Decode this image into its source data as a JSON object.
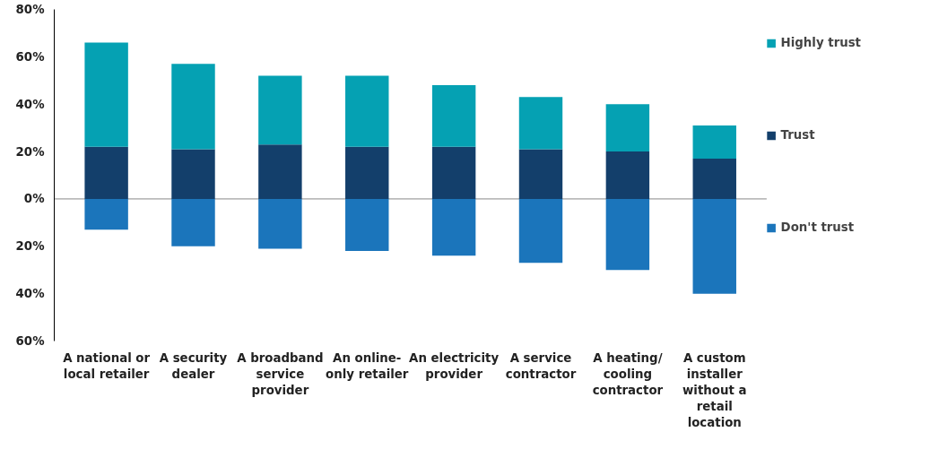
{
  "chart_data": {
    "type": "bar",
    "stacked": true,
    "categories": [
      "A national or local retailer",
      "A security dealer",
      "A broadband service provider",
      "An online-only retailer",
      "An electricity provider",
      "A service contractor",
      "A heating/ cooling contractor",
      "A custom installer without a retail location"
    ],
    "series": [
      {
        "name": "Trust",
        "color": "#133f6b",
        "values": [
          22,
          21,
          23,
          22,
          22,
          21,
          20,
          17
        ]
      },
      {
        "name": "Highly trust",
        "color": "#05a1b3",
        "values": [
          44,
          36,
          29,
          30,
          26,
          22,
          20,
          14
        ]
      },
      {
        "name": "Don't trust",
        "color": "#1b75bb",
        "values": [
          -13,
          -20,
          -21,
          -22,
          -24,
          -27,
          -30,
          -40
        ]
      }
    ],
    "ylim": [
      -60,
      80
    ],
    "yticks": [
      {
        "value": -60,
        "label": "60%"
      },
      {
        "value": -40,
        "label": "40%"
      },
      {
        "value": -20,
        "label": "20%"
      },
      {
        "value": 0,
        "label": "0%"
      },
      {
        "value": 20,
        "label": "20%"
      },
      {
        "value": 40,
        "label": "40%"
      },
      {
        "value": 60,
        "label": "60%"
      },
      {
        "value": 80,
        "label": "80%"
      }
    ],
    "ref_lines": [
      {
        "axis": "y",
        "value": 0,
        "color": "#888888"
      }
    ],
    "grid": false,
    "legend": "right"
  }
}
